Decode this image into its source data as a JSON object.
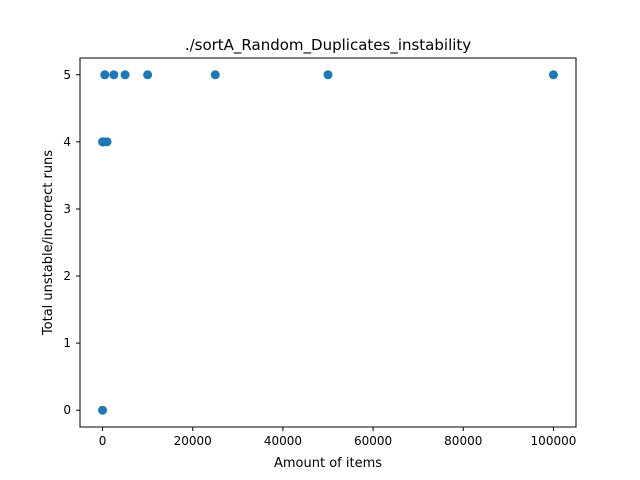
{
  "chart_data": {
    "type": "scatter",
    "title": "./sortA_Random_Duplicates_instability",
    "xlabel": "Amount of items",
    "ylabel": "Total unstable/incorrect runs",
    "xlim": [
      -5000,
      105000
    ],
    "ylim": [
      -0.25,
      5.25
    ],
    "xticks": [
      0,
      20000,
      40000,
      60000,
      80000,
      100000
    ],
    "xtick_labels": [
      "0",
      "20000",
      "40000",
      "60000",
      "80000",
      "100000"
    ],
    "yticks": [
      0,
      1,
      2,
      3,
      4,
      5
    ],
    "ytick_labels": [
      "0",
      "1",
      "2",
      "3",
      "4",
      "5"
    ],
    "grid": false,
    "color": "#1f77b4",
    "series": [
      {
        "x": [
          1,
          10,
          50,
          100,
          250,
          500,
          1000,
          2500,
          5000,
          10000,
          25000,
          50000,
          100000
        ],
        "y": [
          0,
          4,
          4,
          4,
          4,
          5,
          4,
          5,
          5,
          5,
          5,
          5,
          5
        ]
      }
    ]
  }
}
